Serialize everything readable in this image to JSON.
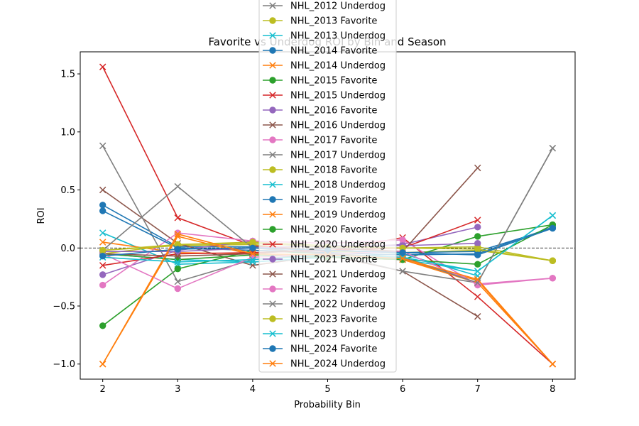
{
  "chart_data": {
    "type": "line",
    "title": "Favorite vs Underdog ROI by Bin and Season",
    "xlabel": "Probability Bin",
    "ylabel": "ROI",
    "x": [
      2,
      3,
      4,
      5,
      6,
      7,
      8
    ],
    "xlim": [
      1.7,
      8.3
    ],
    "ylim": [
      -1.13,
      1.69
    ],
    "x_ticks": [
      2,
      3,
      4,
      5,
      6,
      7,
      8
    ],
    "y_ticks": [
      -1.0,
      -0.5,
      0.0,
      0.5,
      1.0,
      1.5
    ],
    "y_tick_labels": [
      "−1.0",
      "−0.5",
      "0.0",
      "0.5",
      "1.0",
      "1.5"
    ],
    "reference_line": {
      "y": 0,
      "style": "dashed",
      "color": "#000000"
    },
    "grid": false,
    "legend_position": "top-center",
    "series": [
      {
        "name": "NHL_2012 Underdog",
        "color": "#7f7f7f",
        "marker": "x",
        "values": [
          null,
          null,
          null,
          null,
          null,
          null,
          null
        ]
      },
      {
        "name": "NHL_2013 Favorite",
        "color": "#bcbd22",
        "marker": "o",
        "values": [
          -0.02,
          0.02,
          0.03,
          -0.03,
          -0.04,
          -0.02,
          -0.11
        ]
      },
      {
        "name": "NHL_2013 Underdog",
        "color": "#17becf",
        "marker": "x",
        "values": [
          0.13,
          -0.14,
          -0.12,
          -0.08,
          -0.1,
          -0.2,
          0.28
        ]
      },
      {
        "name": "NHL_2014 Favorite",
        "color": "#1f77b4",
        "marker": "o",
        "values": [
          0.37,
          0.01,
          0.01,
          -0.02,
          -0.04,
          -0.03,
          0.17
        ]
      },
      {
        "name": "NHL_2014 Underdog",
        "color": "#ff7f0e",
        "marker": "x",
        "values": [
          0.05,
          -0.04,
          -0.05,
          -0.08,
          -0.1,
          -0.28,
          -1.0
        ]
      },
      {
        "name": "NHL_2015 Favorite",
        "color": "#2ca02c",
        "marker": "o",
        "values": [
          -0.67,
          -0.18,
          -0.02,
          -0.05,
          -0.1,
          0.1,
          0.2
        ]
      },
      {
        "name": "NHL_2015 Underdog",
        "color": "#d62728",
        "marker": "x",
        "values": [
          1.56,
          0.26,
          0.02,
          -0.03,
          0.09,
          -0.42,
          -1.0
        ]
      },
      {
        "name": "NHL_2016 Favorite",
        "color": "#9467bd",
        "marker": "o",
        "values": [
          -0.23,
          -0.02,
          0.06,
          0.0,
          0.03,
          0.18,
          null
        ]
      },
      {
        "name": "NHL_2016 Underdog",
        "color": "#8c564b",
        "marker": "x",
        "values": [
          0.5,
          0.04,
          -0.15,
          -0.06,
          -0.2,
          -0.59,
          null
        ]
      },
      {
        "name": "NHL_2017 Favorite",
        "color": "#e377c2",
        "marker": "o",
        "values": [
          -0.32,
          0.13,
          0.06,
          0.04,
          0.07,
          -0.32,
          -0.26
        ]
      },
      {
        "name": "NHL_2017 Underdog",
        "color": "#7f7f7f",
        "marker": "x",
        "values": [
          0.88,
          -0.29,
          -0.1,
          -0.05,
          -0.2,
          -0.3,
          0.86
        ]
      },
      {
        "name": "NHL_2018 Favorite",
        "color": "#bcbd22",
        "marker": "o",
        "values": [
          -0.05,
          0.03,
          0.05,
          0.02,
          0.0,
          0.01,
          -0.11
        ]
      },
      {
        "name": "NHL_2018 Underdog",
        "color": "#17becf",
        "marker": "x",
        "values": [
          -0.05,
          -0.1,
          -0.12,
          -0.08,
          -0.05,
          -0.24,
          null
        ]
      },
      {
        "name": "NHL_2019 Favorite",
        "color": "#1f77b4",
        "marker": "o",
        "values": [
          0.32,
          0.0,
          -0.02,
          -0.04,
          -0.06,
          -0.05,
          0.18
        ]
      },
      {
        "name": "NHL_2019 Underdog",
        "color": "#ff7f0e",
        "marker": "x",
        "values": [
          -1.0,
          0.1,
          -0.06,
          -0.08,
          -0.1,
          -0.3,
          -1.0
        ]
      },
      {
        "name": "NHL_2020 Favorite",
        "color": "#2ca02c",
        "marker": "o",
        "values": [
          -0.05,
          -0.1,
          -0.06,
          -0.08,
          -0.1,
          -0.14,
          0.2
        ]
      },
      {
        "name": "NHL_2020 Underdog",
        "color": "#d62728",
        "marker": "x",
        "values": [
          -0.15,
          -0.05,
          -0.04,
          -0.02,
          0.0,
          0.24,
          null
        ]
      },
      {
        "name": "NHL_2021 Favorite",
        "color": "#9467bd",
        "marker": "o",
        "values": [
          -0.03,
          -0.03,
          0.0,
          0.02,
          0.02,
          0.04,
          null
        ]
      },
      {
        "name": "NHL_2021 Underdog",
        "color": "#8c564b",
        "marker": "x",
        "values": [
          -0.05,
          -0.07,
          -0.05,
          0.0,
          -0.03,
          0.69,
          null
        ]
      },
      {
        "name": "NHL_2022 Favorite",
        "color": "#e377c2",
        "marker": "o",
        "values": [
          -0.05,
          -0.35,
          -0.08,
          -0.05,
          -0.03,
          -0.31,
          -0.26
        ]
      },
      {
        "name": "NHL_2022 Underdog",
        "color": "#7f7f7f",
        "marker": "x",
        "values": [
          -0.02,
          0.53,
          0.0,
          -0.05,
          -0.08,
          -0.3,
          0.86
        ]
      },
      {
        "name": "NHL_2023 Favorite",
        "color": "#bcbd22",
        "marker": "o",
        "values": [
          -0.02,
          0.03,
          0.04,
          0.01,
          0.0,
          -0.01,
          -0.11
        ]
      },
      {
        "name": "NHL_2023 Underdog",
        "color": "#17becf",
        "marker": "x",
        "values": [
          -0.08,
          -0.12,
          -0.1,
          -0.06,
          -0.08,
          -0.2,
          0.28
        ]
      },
      {
        "name": "NHL_2024 Favorite",
        "color": "#1f77b4",
        "marker": "o",
        "values": [
          -0.07,
          -0.01,
          0.0,
          -0.02,
          -0.04,
          -0.06,
          0.17
        ]
      },
      {
        "name": "NHL_2024 Underdog",
        "color": "#ff7f0e",
        "marker": "x",
        "values": [
          -1.0,
          0.12,
          -0.05,
          -0.06,
          -0.09,
          -0.27,
          -1.0
        ]
      }
    ]
  }
}
